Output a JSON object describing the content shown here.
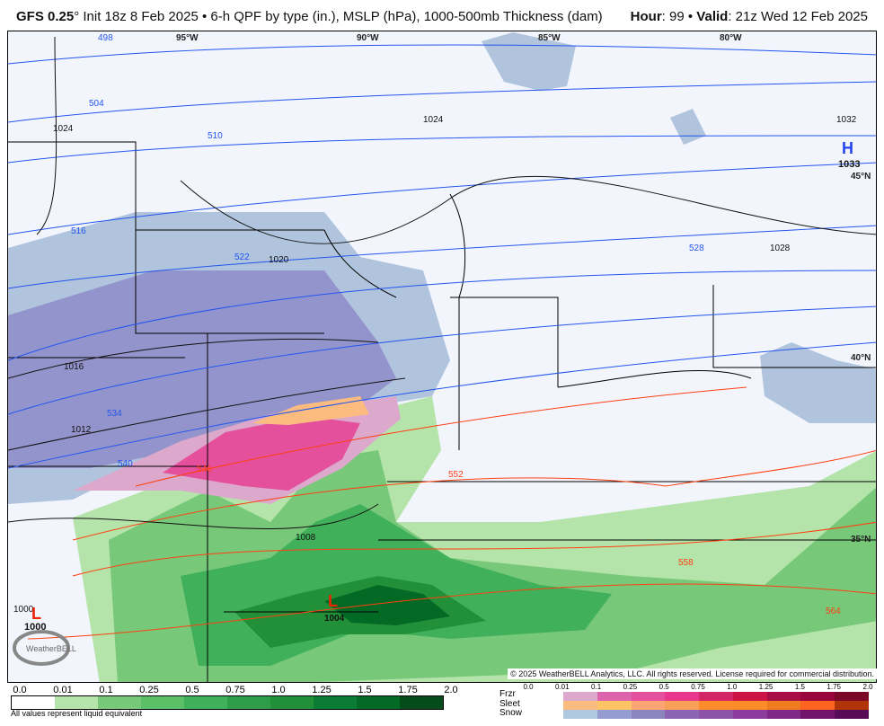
{
  "header": {
    "model": "GFS 0.25",
    "degree": "°",
    "init": " Init 18z 8 Feb 2025",
    "sep": " • ",
    "product": "6-h QPF by type (in.), MSLP (hPa), 1000-500mb Thickness (dam)",
    "hour_label": "Hour",
    "hour": ": 99",
    "valid_label": "Valid",
    "valid": ": 21z Wed 12 Feb 2025"
  },
  "map": {
    "lon_labels": [
      "95°W",
      "90°W",
      "85°W",
      "80°W"
    ],
    "lat_labels": [
      "45°N",
      "40°N",
      "35°N"
    ],
    "thickness_labels": [
      "498",
      "504",
      "510",
      "516",
      "522",
      "528",
      "534",
      "540",
      "546",
      "552",
      "558",
      "564"
    ],
    "isobar_labels": [
      "1024",
      "1024",
      "1020",
      "1016",
      "1012",
      "1008",
      "1028",
      "1032",
      "1004",
      "1000"
    ],
    "highs": [
      {
        "symbol": "H",
        "value": "1033"
      }
    ],
    "lows": [
      {
        "symbol": "L",
        "value": "1000"
      },
      {
        "symbol": "L",
        "value": "1004"
      }
    ],
    "logo_text": "WeatherBELL",
    "copyright": "© 2025 WeatherBELL Analytics, LLC. All rights reserved. License required for commercial distribution."
  },
  "legend": {
    "rain_ticks": [
      "0.0",
      "0.01",
      "0.1",
      "0.25",
      "0.5",
      "0.75",
      "1.0",
      "1.25",
      "1.5",
      "1.75",
      "2.0"
    ],
    "rain_colors": [
      "#ffffff",
      "#b4e4aa",
      "#78c87a",
      "#5abf66",
      "#40b05a",
      "#2e9c48",
      "#229038",
      "#0a7c34",
      "#036a26",
      "#044c1a"
    ],
    "note": "All values represent liquid equivalent",
    "ptype_ticks": [
      "0.0",
      "0.01",
      "0.1",
      "0.25",
      "0.5",
      "0.75",
      "1.0",
      "1.25",
      "1.5",
      "1.75",
      "2.0"
    ],
    "ptype_labels": [
      "Frzr",
      "Sleet",
      "Snow"
    ],
    "frzr_colors": [
      "#dca8cc",
      "#dc64ac",
      "#e4509c",
      "#e8368c",
      "#d22666",
      "#cc1444",
      "#a80c44",
      "#98043c",
      "#7c0828"
    ],
    "sleet_colors": [
      "#fcbc80",
      "#fcc464",
      "#fca474",
      "#f8a058",
      "#fc8c2c",
      "#fc8c28",
      "#f07c20",
      "#fc6420",
      "#b03408"
    ],
    "snow_colors": [
      "#aec8e0",
      "#949cd0",
      "#8c84bc",
      "#8c64b4",
      "#8c54a8",
      "#8c3c9c",
      "#802888",
      "#70146c",
      "#580c58"
    ]
  }
}
